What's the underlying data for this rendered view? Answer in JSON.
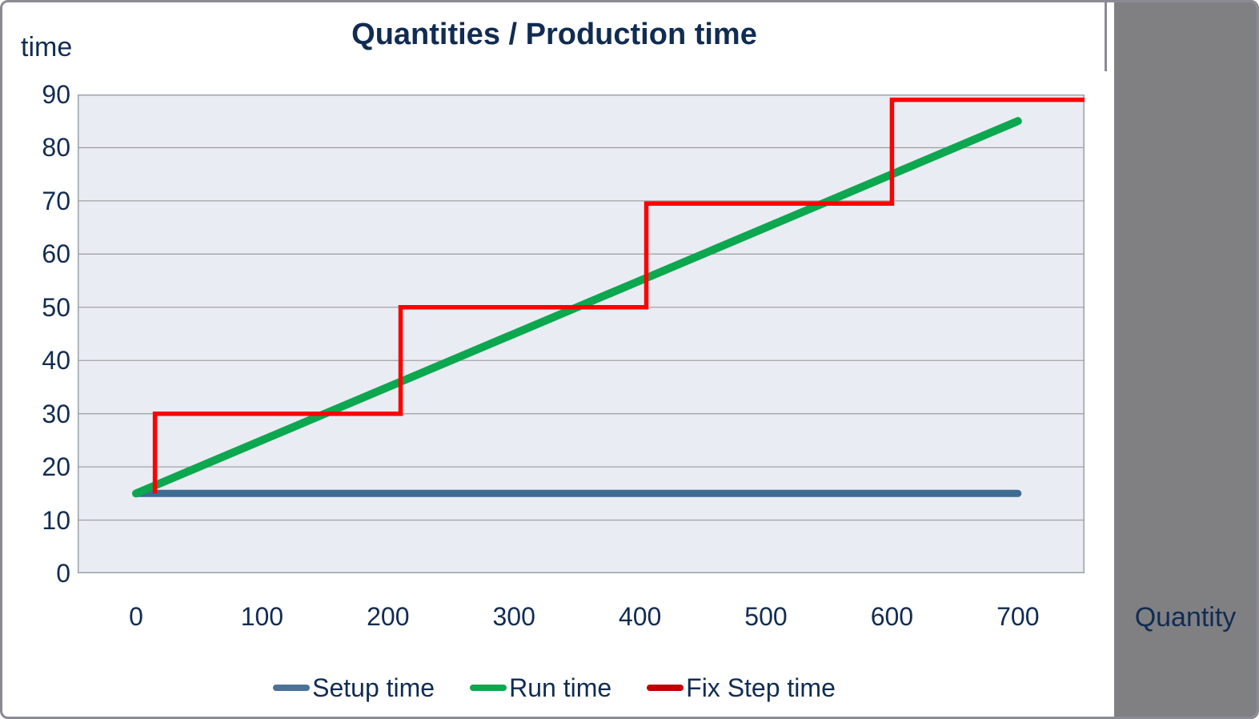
{
  "frame": {
    "background": "#ffffff",
    "border_color": "#8b8b95"
  },
  "side_panel": {
    "color": "#808083"
  },
  "text_color": "#112c52",
  "chart_data": {
    "type": "line",
    "title": "Quantities / Production time",
    "xlabel": "Quantity",
    "ylabel": "time",
    "xlim": [
      -46,
      753
    ],
    "ylim": [
      0,
      90
    ],
    "x_ticks": [
      0,
      100,
      200,
      300,
      400,
      500,
      600,
      700
    ],
    "y_ticks": [
      0,
      10,
      20,
      30,
      40,
      50,
      60,
      70,
      80,
      90
    ],
    "grid": "horizontal",
    "plot_bg": "#e9edf3",
    "grid_color": "#a3a3a3",
    "plot_border_color": "#9ba1a9",
    "legend_position": "bottom",
    "series": [
      {
        "name": "Setup time",
        "color": "#3e6c93",
        "legend_color": "#4a7298",
        "stroke_width": 9,
        "points": [
          [
            0,
            15
          ],
          [
            700,
            15
          ]
        ]
      },
      {
        "name": "Run time",
        "color": "#0ca74f",
        "legend_color": "#0ca74f",
        "stroke_width": 10,
        "points": [
          [
            0,
            15
          ],
          [
            700,
            85
          ]
        ]
      },
      {
        "name": "Fix Step time",
        "color": "#fe0000",
        "legend_color": "#c00000",
        "stroke_width": 5.5,
        "points": [
          [
            15,
            15
          ],
          [
            15,
            30
          ],
          [
            210,
            30
          ],
          [
            210,
            50
          ],
          [
            405,
            50
          ],
          [
            405,
            69.5
          ],
          [
            600,
            69.5
          ],
          [
            600,
            89
          ],
          [
            753,
            89
          ]
        ]
      }
    ]
  }
}
